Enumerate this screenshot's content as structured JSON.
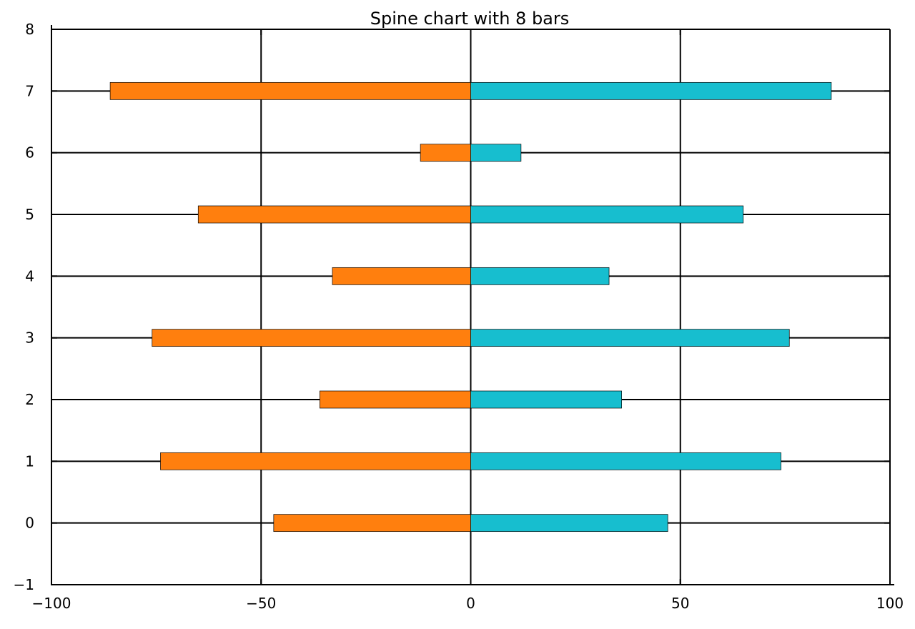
{
  "chart_data": {
    "type": "bar",
    "orientation": "horizontal",
    "title": "Spine chart with 8 bars",
    "xlabel": "",
    "ylabel": "",
    "xlim": [
      -100,
      100
    ],
    "ylim": [
      -1,
      8
    ],
    "x_ticks": [
      -100,
      -50,
      0,
      50,
      100
    ],
    "x_tick_labels": [
      "−100",
      "−50",
      "0",
      "50",
      "100"
    ],
    "y_ticks": [
      -1,
      0,
      1,
      2,
      3,
      4,
      5,
      6,
      7,
      8
    ],
    "y_tick_labels": [
      "−1",
      "0",
      "1",
      "2",
      "3",
      "4",
      "5",
      "6",
      "7",
      "8"
    ],
    "categories": [
      0,
      1,
      2,
      3,
      4,
      5,
      6,
      7
    ],
    "grid": true,
    "legend": "none",
    "series": [
      {
        "color": "#ff7f0e",
        "values": [
          -47,
          -74,
          -36,
          -76,
          -33,
          -65,
          -12,
          -86
        ]
      },
      {
        "color": "#17becf",
        "values": [
          47,
          74,
          36,
          76,
          33,
          65,
          12,
          86
        ]
      }
    ]
  }
}
